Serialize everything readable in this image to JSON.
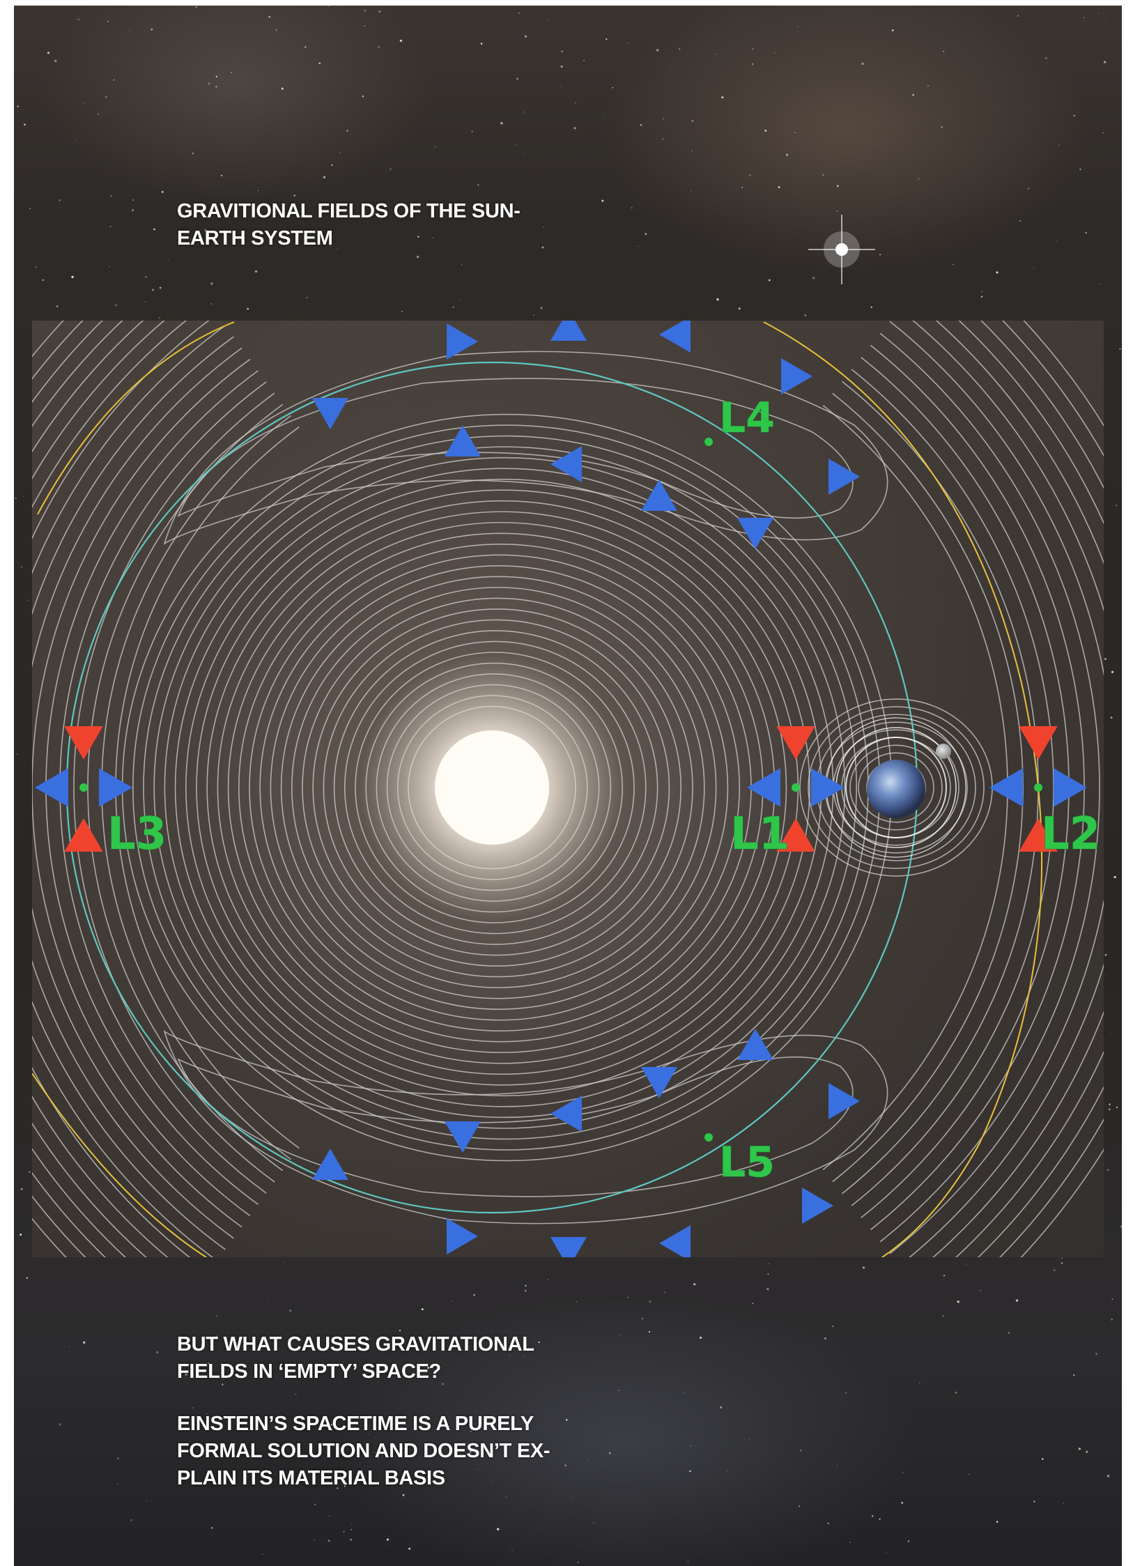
{
  "title": "GRAVITIONAL FIELDS OF THE SUN-\nEARTH SYSTEM",
  "question": "BUT WHAT CAUSES GRAVITATIONAL\nFIELDS IN ‘EMPTY’ SPACE?",
  "answer": "EINSTEIN’S SPACETIME IS A PURELY\nFORMAL SOLUTION AND DOESN’T EX-\nPLAIN ITS MATERIAL BASIS",
  "lagrange_points": {
    "l1": "L1",
    "l2": "L2",
    "l3": "L3",
    "l4": "L4",
    "l5": "L5"
  },
  "colors": {
    "orbit": "#5fc7c0",
    "contour": "#cfcfcf",
    "outer_orbit": "#e8c23a",
    "attract_arrow": "#3a6fe0",
    "repel_arrow": "#f0432e",
    "label_green": "#2fc64a"
  }
}
